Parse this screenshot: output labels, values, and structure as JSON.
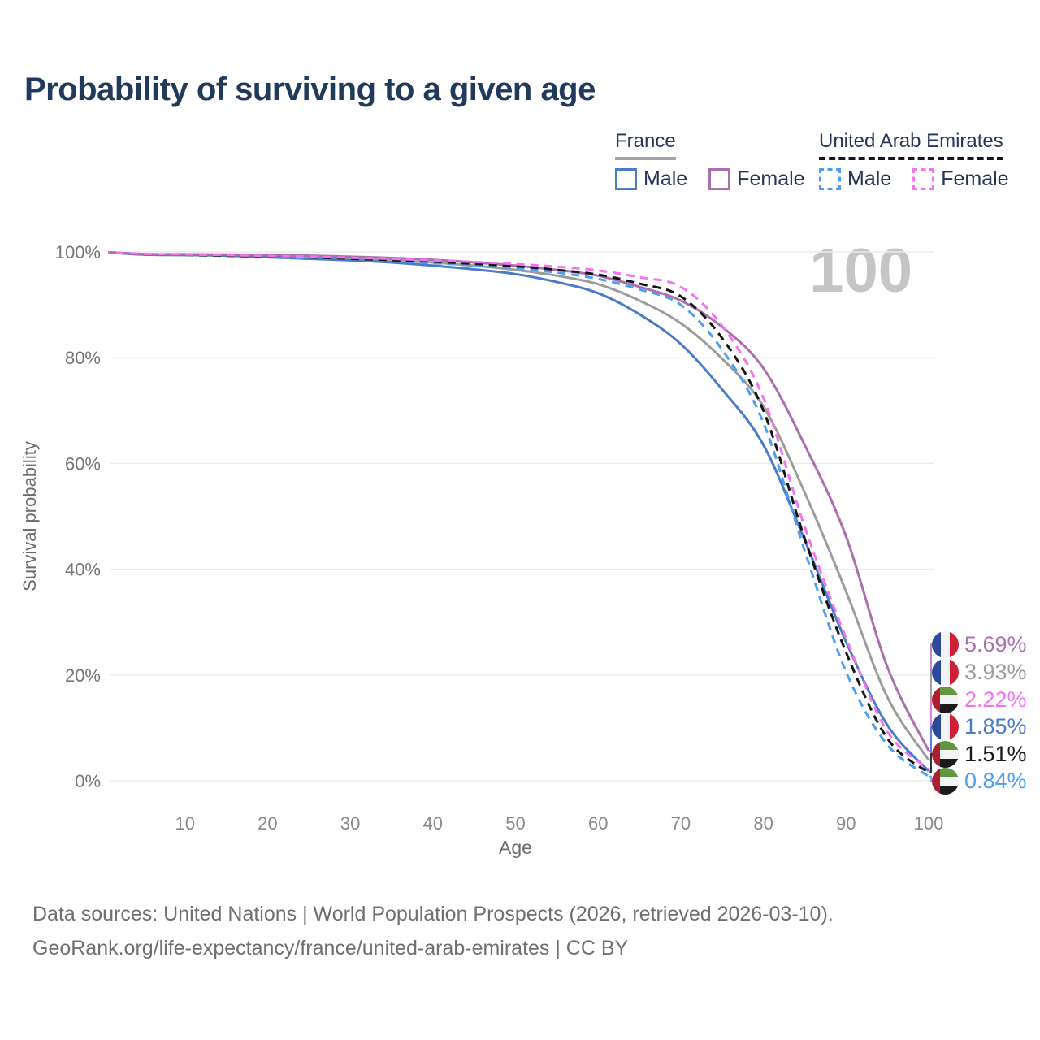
{
  "title": "Probability of surviving to a given age",
  "watermark": "100",
  "legend": {
    "groups": [
      {
        "label": "France",
        "line_style": "solid",
        "underline_color": "#a3a3a3",
        "items": [
          {
            "label": "Male",
            "color": "#4a7bc9"
          },
          {
            "label": "Female",
            "color": "#ab6fae"
          }
        ]
      },
      {
        "label": "United Arab Emirates",
        "line_style": "dashed",
        "underline_color": "#161616",
        "items": [
          {
            "label": "Male",
            "color": "#4e9ef2"
          },
          {
            "label": "Female",
            "color": "#f673ee"
          }
        ]
      }
    ]
  },
  "chart_data": {
    "type": "line",
    "title": "Probability of surviving to a given age",
    "xlabel": "Age",
    "ylabel": "Survival probability",
    "xlim": [
      0,
      100
    ],
    "ylim": [
      0,
      100
    ],
    "grid": "horizontal",
    "xticks": [
      10,
      20,
      30,
      40,
      50,
      60,
      70,
      80,
      90,
      100
    ],
    "yticks": [
      {
        "value": 0,
        "label": "0%"
      },
      {
        "value": 20,
        "label": "20%"
      },
      {
        "value": 40,
        "label": "40%"
      },
      {
        "value": 60,
        "label": "60%"
      },
      {
        "value": 80,
        "label": "80%"
      },
      {
        "value": 100,
        "label": "100%"
      }
    ],
    "x": [
      0,
      5,
      10,
      15,
      20,
      25,
      30,
      35,
      40,
      45,
      50,
      55,
      60,
      65,
      70,
      75,
      80,
      85,
      90,
      95,
      100
    ],
    "series": [
      {
        "name": "France Total",
        "color": "#9c9c9c",
        "style": "solid",
        "values": [
          100,
          99.55,
          99.5,
          99.4,
          99.2,
          99.0,
          98.75,
          98.4,
          98.0,
          97.4,
          96.6,
          95.5,
          93.9,
          90.8,
          86.5,
          79.8,
          70.8,
          54.5,
          35.8,
          15.8,
          3.93
        ]
      },
      {
        "name": "France Male",
        "color": "#4a7bc9",
        "style": "solid",
        "values": [
          100,
          99.5,
          99.4,
          99.3,
          99.0,
          98.7,
          98.4,
          98.0,
          97.4,
          96.7,
          95.8,
          94.3,
          92.2,
          88.2,
          82.6,
          74.0,
          63.5,
          45.5,
          26.3,
          10.5,
          1.85
        ]
      },
      {
        "name": "France Female",
        "color": "#ab6fae",
        "style": "solid",
        "values": [
          100,
          99.6,
          99.55,
          99.5,
          99.4,
          99.3,
          99.1,
          98.85,
          98.5,
          98.0,
          97.4,
          96.6,
          95.5,
          93.4,
          90.8,
          85.8,
          78.0,
          63.5,
          46.2,
          21.5,
          5.69
        ]
      },
      {
        "name": "United Arab Emirates Male",
        "color": "#4e9ef2",
        "style": "dashed",
        "values": [
          100,
          99.5,
          99.4,
          99.25,
          99.05,
          98.8,
          98.55,
          98.25,
          97.9,
          97.45,
          96.9,
          96.1,
          94.9,
          92.9,
          90.0,
          81.5,
          67.7,
          43.5,
          20.6,
          6.8,
          0.84
        ]
      },
      {
        "name": "United Arab Emirates Total",
        "color": "#151515",
        "style": "dashed",
        "values": [
          100,
          99.55,
          99.45,
          99.3,
          99.15,
          98.95,
          98.7,
          98.45,
          98.15,
          97.75,
          97.3,
          96.6,
          95.7,
          94.0,
          91.6,
          83.7,
          70.0,
          45.8,
          24.3,
          8.0,
          1.51
        ]
      },
      {
        "name": "United Arab Emirates Female",
        "color": "#f673ee",
        "style": "dashed",
        "values": [
          100,
          99.6,
          99.5,
          99.4,
          99.25,
          99.1,
          98.9,
          98.7,
          98.4,
          98.1,
          97.7,
          97.2,
          96.5,
          95.2,
          93.4,
          86.0,
          72.4,
          48.0,
          27.0,
          9.3,
          2.22
        ]
      }
    ],
    "end_labels": [
      {
        "value": "5.69%",
        "series": "France Female",
        "color": "#ab6fae",
        "flag": "france"
      },
      {
        "value": "3.93%",
        "series": "France Total",
        "color": "#9c9c9c",
        "flag": "france"
      },
      {
        "value": "2.22%",
        "series": "United Arab Emirates Female",
        "color": "#f673ee",
        "flag": "uae"
      },
      {
        "value": "1.85%",
        "series": "France Male",
        "color": "#4a7bc9",
        "flag": "france"
      },
      {
        "value": "1.51%",
        "series": "United Arab Emirates Total",
        "color": "#1a1a1a",
        "flag": "uae"
      },
      {
        "value": "0.84%",
        "series": "United Arab Emirates Male",
        "color": "#4e9ef2",
        "flag": "uae"
      }
    ],
    "annotation": "100"
  },
  "footer": {
    "line1": "Data sources: United Nations | World Population Prospects (2026, retrieved 2026-03-10).",
    "line2": "GeoRank.org/life-expectancy/france/united-arab-emirates | CC BY"
  }
}
